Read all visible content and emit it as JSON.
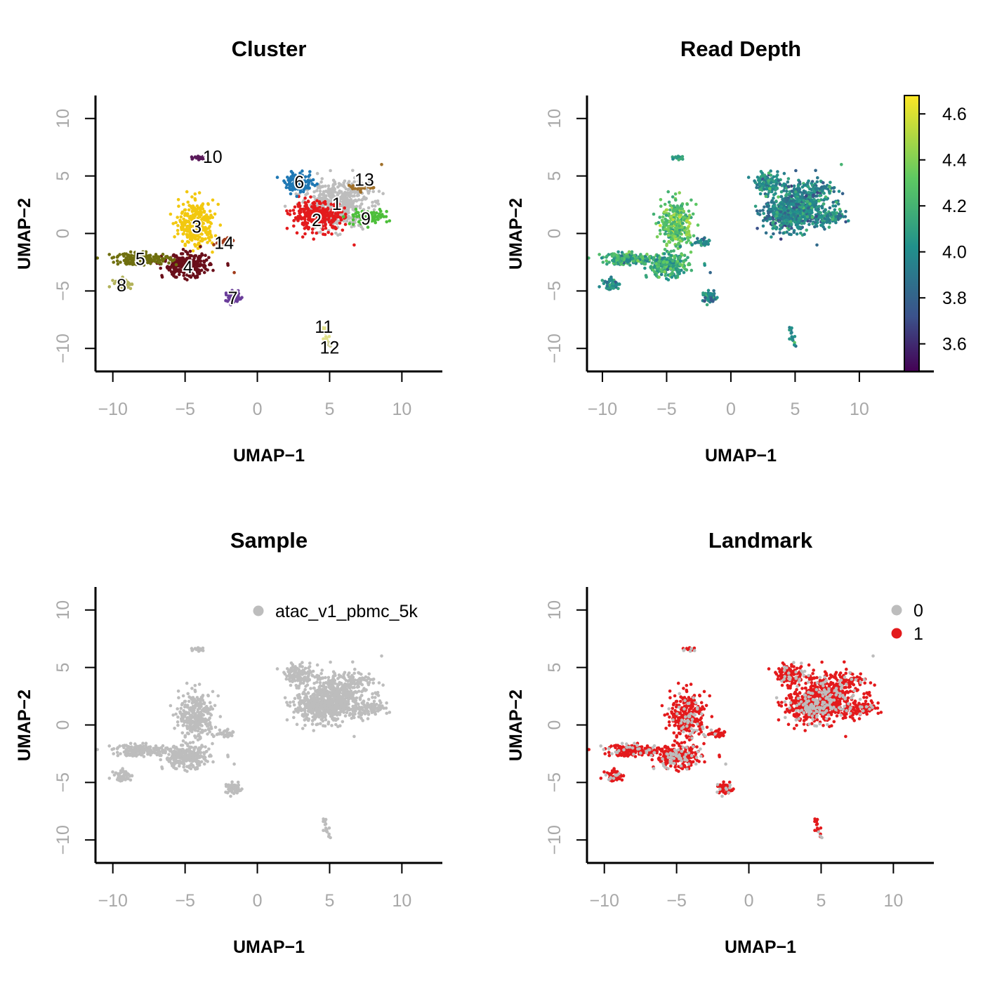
{
  "chart_data": [
    {
      "type": "scatter",
      "title": "Cluster",
      "xlabel": "UMAP−1",
      "ylabel": "UMAP−2",
      "xlim": [
        -11.2,
        12.8
      ],
      "ylim": [
        -12,
        12
      ],
      "xticks": [
        -10,
        -5,
        0,
        5,
        10
      ],
      "yticks": [
        -10,
        -5,
        0,
        5,
        10
      ],
      "xtick_labels": [
        "−10",
        "−5",
        "0",
        "5",
        "10"
      ],
      "ytick_labels": [
        "−10",
        "−5",
        "0",
        "5",
        "10"
      ],
      "grid": false,
      "legend": "none",
      "cluster_labels": [
        {
          "label": "1",
          "x": 5.5,
          "y": 2.6
        },
        {
          "label": "2",
          "x": 4.1,
          "y": 1.2
        },
        {
          "label": "3",
          "x": -4.2,
          "y": 0.6
        },
        {
          "label": "4",
          "x": -4.8,
          "y": -2.9
        },
        {
          "label": "5",
          "x": -8.1,
          "y": -2.2
        },
        {
          "label": "6",
          "x": 2.9,
          "y": 4.5
        },
        {
          "label": "7",
          "x": -1.7,
          "y": -5.6
        },
        {
          "label": "8",
          "x": -9.4,
          "y": -4.5
        },
        {
          "label": "9",
          "x": 7.5,
          "y": 1.3
        },
        {
          "label": "10",
          "x": -3.1,
          "y": 6.7
        },
        {
          "label": "11",
          "x": 4.6,
          "y": -8.1
        },
        {
          "label": "12",
          "x": 5.0,
          "y": -9.9
        },
        {
          "label": "13",
          "x": 7.4,
          "y": 4.7
        },
        {
          "label": "14",
          "x": -2.3,
          "y": -0.8
        }
      ],
      "clusters": [
        {
          "id": "1",
          "color": "#bdbdbd",
          "cx": 5.5,
          "cy": 2.5,
          "sx": 1.1,
          "sy": 1.0,
          "n": 520
        },
        {
          "id": "2",
          "color": "#e31a1c",
          "cx": 4.2,
          "cy": 1.5,
          "sx": 0.9,
          "sy": 0.6,
          "n": 320
        },
        {
          "id": "3",
          "color": "#f2c80f",
          "cx": -4.2,
          "cy": 0.8,
          "sx": 0.6,
          "sy": 1.0,
          "n": 300
        },
        {
          "id": "4",
          "color": "#6a0f1a",
          "cx": -4.9,
          "cy": -2.8,
          "sx": 0.8,
          "sy": 0.5,
          "n": 280
        },
        {
          "id": "5",
          "color": "#6f6f0f",
          "cx": -8.0,
          "cy": -2.2,
          "sx": 1.0,
          "sy": 0.25,
          "n": 160
        },
        {
          "id": "6",
          "color": "#1f78b4",
          "cx": 2.9,
          "cy": 4.4,
          "sx": 0.5,
          "sy": 0.4,
          "n": 120
        },
        {
          "id": "7",
          "color": "#6a3d9a",
          "cx": -1.6,
          "cy": -5.6,
          "sx": 0.3,
          "sy": 0.25,
          "n": 60
        },
        {
          "id": "8",
          "color": "#b2b25a",
          "cx": -9.3,
          "cy": -4.4,
          "sx": 0.3,
          "sy": 0.25,
          "n": 50
        },
        {
          "id": "9",
          "color": "#4dbf3a",
          "cx": 7.6,
          "cy": 1.4,
          "sx": 0.7,
          "sy": 0.3,
          "n": 90
        },
        {
          "id": "10",
          "color": "#5a1a5a",
          "cx": -4.0,
          "cy": 6.6,
          "sx": 0.2,
          "sy": 0.1,
          "n": 15
        },
        {
          "id": "11",
          "color": "#e0e08a",
          "cx": 4.7,
          "cy": -8.5,
          "sx": 0.1,
          "sy": 0.4,
          "n": 12
        },
        {
          "id": "12",
          "color": "#cfcf9a",
          "cx": 5.0,
          "cy": -9.6,
          "sx": 0.05,
          "sy": 0.1,
          "n": 4
        },
        {
          "id": "13",
          "color": "#a0702a",
          "cx": 7.0,
          "cy": 4.0,
          "sx": 0.4,
          "sy": 0.2,
          "n": 25
        },
        {
          "id": "14",
          "color": "#a03a1a",
          "cx": -2.3,
          "cy": -0.7,
          "sx": 0.4,
          "sy": 0.2,
          "n": 30
        }
      ]
    },
    {
      "type": "scatter",
      "title": "Read Depth",
      "xlabel": "UMAP−1",
      "ylabel": "UMAP−2",
      "xlim": [
        -11.2,
        15.8
      ],
      "ylim": [
        -12,
        12
      ],
      "xticks": [
        -10,
        -5,
        0,
        5,
        10
      ],
      "yticks": [
        -10,
        -5,
        0,
        5,
        10
      ],
      "xtick_labels": [
        "−10",
        "−5",
        "0",
        "5",
        "10"
      ],
      "ytick_labels": [
        "−10",
        "−5",
        "0",
        "5",
        "10"
      ],
      "grid": false,
      "colorbar": {
        "range": [
          3.48,
          4.68
        ],
        "ticks": [
          3.6,
          3.8,
          4.0,
          4.2,
          4.4,
          4.6
        ],
        "tick_labels": [
          "3.6",
          "3.8",
          "4.0",
          "4.2",
          "4.4",
          "4.6"
        ],
        "palette": "viridis",
        "placement": "right"
      }
    },
    {
      "type": "scatter",
      "title": "Sample",
      "xlabel": "UMAP−1",
      "ylabel": "UMAP−2",
      "xlim": [
        -11.2,
        12.8
      ],
      "ylim": [
        -12,
        12
      ],
      "xticks": [
        -10,
        -5,
        0,
        5,
        10
      ],
      "yticks": [
        -10,
        -5,
        0,
        5,
        10
      ],
      "xtick_labels": [
        "−10",
        "−5",
        "0",
        "5",
        "10"
      ],
      "ytick_labels": [
        "−10",
        "−5",
        "0",
        "5",
        "10"
      ],
      "grid": false,
      "legend": "top-right",
      "series": [
        {
          "name": "atac_v1_pbmc_5k",
          "color": "#bdbdbd"
        }
      ]
    },
    {
      "type": "scatter",
      "title": "Landmark",
      "xlabel": "UMAP−1",
      "ylabel": "UMAP−2",
      "xlim": [
        -11.2,
        12.8
      ],
      "ylim": [
        -12,
        12
      ],
      "xticks": [
        -10,
        -5,
        0,
        5,
        10
      ],
      "yticks": [
        -10,
        -5,
        0,
        5,
        10
      ],
      "xtick_labels": [
        "−10",
        "−5",
        "0",
        "5",
        "10"
      ],
      "ytick_labels": [
        "−10",
        "−5",
        "0",
        "5",
        "10"
      ],
      "grid": false,
      "legend": "top-right",
      "series": [
        {
          "name": "0",
          "color": "#bdbdbd"
        },
        {
          "name": "1",
          "color": "#e31a1c"
        }
      ]
    }
  ]
}
